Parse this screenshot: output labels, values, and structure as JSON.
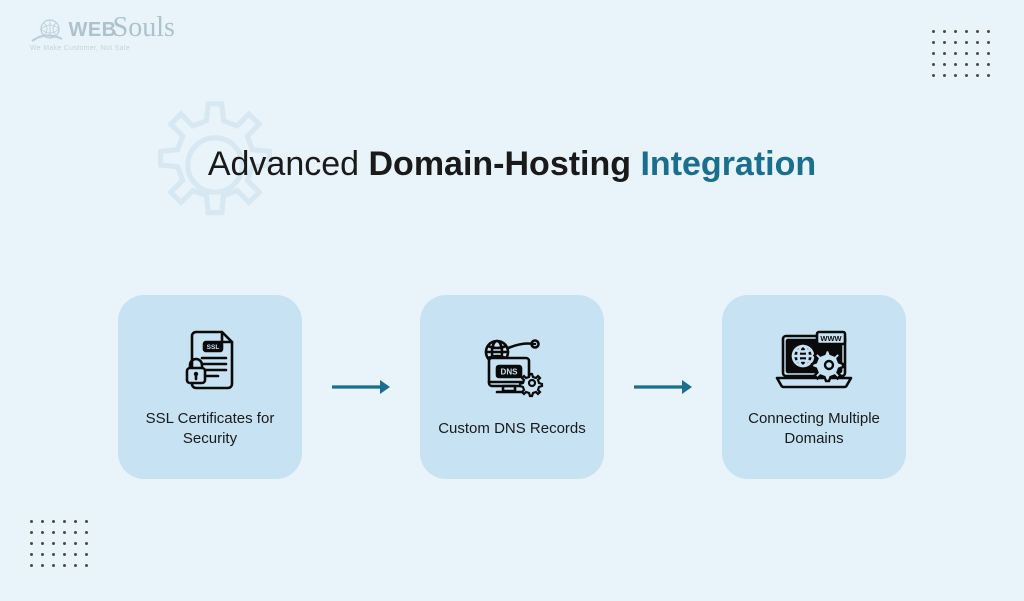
{
  "colors": {
    "page_bg": "#e8f3fa",
    "card_bg": "#c7e2f2",
    "arrow": "#1a6e8e",
    "title_normal": "#1a1a1a",
    "title_bold": "#1a1a1a",
    "title_accent": "#1a6e8e",
    "icon": "#0a0a0a",
    "dot": "#4a4a4a",
    "gear_outline": "#c7dbe8"
  },
  "logo": {
    "web": "WEB",
    "souls": "Souls",
    "tagline": "We Make Customer, Not Sale"
  },
  "title": {
    "part1": "Advanced ",
    "part2": "Domain-Hosting ",
    "part3": "Integration",
    "fontsize": 34
  },
  "flow": {
    "type": "flowchart",
    "direction": "horizontal",
    "cards": [
      {
        "id": "ssl",
        "label": "SSL Certificates for Security"
      },
      {
        "id": "dns",
        "label": "Custom DNS Records"
      },
      {
        "id": "multi",
        "label": "Connecting Multiple Domains"
      }
    ],
    "card_size": 184,
    "card_radius": 26,
    "arrow_length": 62
  },
  "decor": {
    "dots": {
      "rows": 5,
      "cols": 6,
      "gap": 4,
      "dot_size": 3
    }
  }
}
